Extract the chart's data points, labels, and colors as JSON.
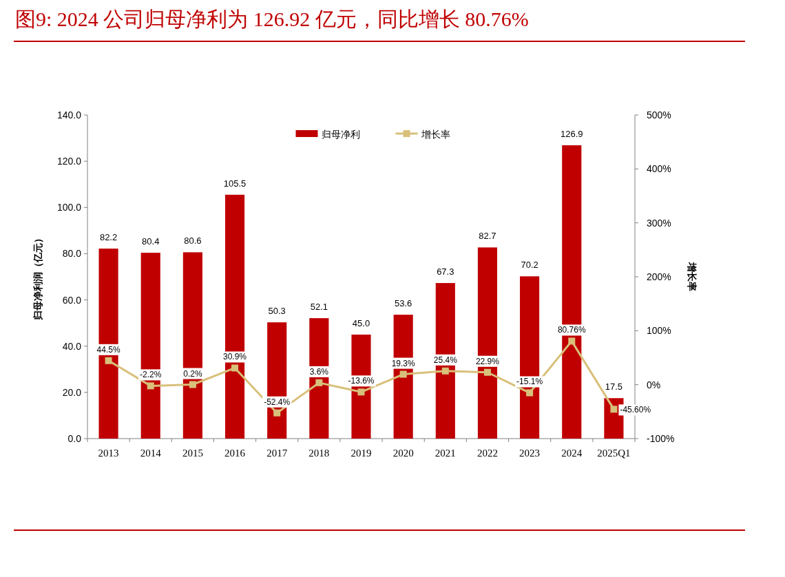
{
  "chart_data": {
    "type": "bar",
    "title": "图9:   2024 公司归母净利为 126.92 亿元，同比增长 80.76%",
    "categories": [
      "2013",
      "2014",
      "2015",
      "2016",
      "2017",
      "2018",
      "2019",
      "2020",
      "2021",
      "2022",
      "2023",
      "2024",
      "2025Q1"
    ],
    "series": [
      {
        "name": "归母净利",
        "color": "#c00000",
        "values": [
          82.2,
          80.4,
          80.6,
          105.5,
          50.3,
          52.1,
          45.0,
          53.6,
          67.3,
          82.7,
          70.2,
          126.9,
          17.5
        ],
        "value_labels": [
          "82.2",
          "80.4",
          "80.6",
          "105.5",
          "50.3",
          "52.1",
          "45.0",
          "53.6",
          "67.3",
          "82.7",
          "70.2",
          "126.9",
          "17.5"
        ]
      },
      {
        "name": "增长率",
        "type": "line",
        "axis": "y2",
        "color": "#d8c07a",
        "marker": "square",
        "values": [
          44.5,
          -2.2,
          0.2,
          30.9,
          -52.4,
          3.6,
          -13.6,
          19.3,
          25.4,
          22.9,
          -15.1,
          80.76,
          -45.6
        ],
        "value_labels": [
          "44.5%",
          "-2.2%",
          "0.2%",
          "30.9%",
          "-52.4%",
          "3.6%",
          "-13.6%",
          "19.3%",
          "25.4%",
          "22.9%",
          "-15.1%",
          "80.76%",
          "-45.60%"
        ]
      }
    ],
    "ylabel": "归母净利润（亿元）",
    "y2label": "增长率",
    "ylim": [
      0,
      140
    ],
    "yticks": [
      {
        "value": 0,
        "label": "0.0"
      },
      {
        "value": 20,
        "label": "20.0"
      },
      {
        "value": 40,
        "label": "40.0"
      },
      {
        "value": 60,
        "label": "60.0"
      },
      {
        "value": 80,
        "label": "80.0"
      },
      {
        "value": 100,
        "label": "100.0"
      },
      {
        "value": 120,
        "label": "120.0"
      },
      {
        "value": 140,
        "label": "140.0"
      }
    ],
    "y2lim": [
      -100,
      500
    ],
    "y2ticks": [
      {
        "value": -100,
        "label": "-100%"
      },
      {
        "value": 0,
        "label": "0%"
      },
      {
        "value": 100,
        "label": "100%"
      },
      {
        "value": 200,
        "label": "200%"
      },
      {
        "value": 300,
        "label": "300%"
      },
      {
        "value": 400,
        "label": "400%"
      },
      {
        "value": 500,
        "label": "500%"
      }
    ],
    "legend": "top",
    "grid": false
  }
}
